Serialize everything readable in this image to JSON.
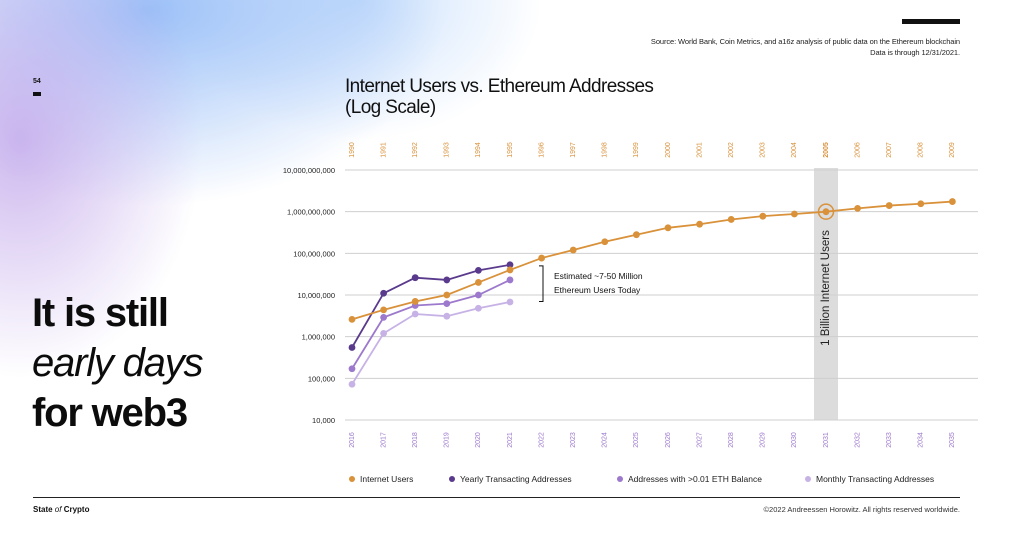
{
  "slide": {
    "page_number": "54",
    "source_line1": "Source: World Bank, Coin Metrics, and a16z analysis of public data on the Ethereum blockchain",
    "source_line2": "Data is through 12/31/2021.",
    "headline_line1": "It is still",
    "headline_line2": "early days",
    "headline_line3": "for web3",
    "brand_part1": "State ",
    "brand_part2": "of",
    "brand_part3": " Crypto",
    "copyright": "©2022 Andreessen Horowitz. All rights reserved worldwide."
  },
  "colors": {
    "internet_users": "#d9913a",
    "yearly_transacting": "#5a3a8c",
    "eth_balance": "#9c79cc",
    "monthly_transacting": "#c7b2e6",
    "top_axis_text": "#d9913a",
    "bottom_axis_text": "#9c79cc",
    "highlight_band": "#dcdcdc"
  },
  "chart_data": {
    "type": "line",
    "title_line1": "Internet Users vs. Ethereum Addresses",
    "title_line2": "(Log Scale)",
    "y_scale": "log",
    "ylim": [
      10000,
      10000000000
    ],
    "y_ticks": [
      {
        "value": 10000000000,
        "label": "10,000,000,000"
      },
      {
        "value": 1000000000,
        "label": "1,000,000,000"
      },
      {
        "value": 100000000,
        "label": "100,000,000"
      },
      {
        "value": 10000000,
        "label": "10,000,000"
      },
      {
        "value": 1000000,
        "label": "1,000,000"
      },
      {
        "value": 100000,
        "label": "100,000"
      },
      {
        "value": 10000,
        "label": "10,000"
      }
    ],
    "x_bottom": [
      "2016",
      "2017",
      "2018",
      "2019",
      "2020",
      "2021",
      "2022",
      "2023",
      "2024",
      "2025",
      "2026",
      "2027",
      "2028",
      "2029",
      "2030",
      "2031",
      "2032",
      "2033",
      "2034",
      "2035"
    ],
    "x_top": [
      "1990",
      "1991",
      "1992",
      "1993",
      "1994",
      "1995",
      "1996",
      "1997",
      "1998",
      "1999",
      "2000",
      "2001",
      "2002",
      "2003",
      "2004",
      "2005",
      "2006",
      "2007",
      "2008",
      "2009"
    ],
    "grid": true,
    "legend_position": "bottom",
    "highlight": {
      "top_year": "2005",
      "bottom_year": "2031",
      "label": "1 Billion Internet Users",
      "value": 1000000000
    },
    "annotation": {
      "line1": "Estimated ~7-50 Million",
      "line2": "Ethereum Users Today",
      "from": 7000000,
      "to": 50000000
    },
    "series": [
      {
        "name": "Internet Users",
        "color_key": "internet_users",
        "axis": "top",
        "x": [
          "1990",
          "1991",
          "1992",
          "1993",
          "1994",
          "1995",
          "1996",
          "1997",
          "1998",
          "1999",
          "2000",
          "2001",
          "2002",
          "2003",
          "2004",
          "2005",
          "2006",
          "2007",
          "2008",
          "2009"
        ],
        "values": [
          2600000,
          4400000,
          7000000,
          10000000,
          20000000,
          40000000,
          77000000,
          120000000,
          190000000,
          280000000,
          410000000,
          500000000,
          650000000,
          780000000,
          880000000,
          1000000000,
          1200000000,
          1400000000,
          1550000000,
          1750000000
        ]
      },
      {
        "name": "Yearly Transacting Addresses",
        "color_key": "yearly_transacting",
        "axis": "bottom",
        "x": [
          "2016",
          "2017",
          "2018",
          "2019",
          "2020",
          "2021"
        ],
        "values": [
          550000,
          11000000,
          26000000,
          23000000,
          39000000,
          53000000
        ]
      },
      {
        "name": "Addresses with >0.01 ETH Balance",
        "color_key": "eth_balance",
        "axis": "bottom",
        "x": [
          "2016",
          "2017",
          "2018",
          "2019",
          "2020",
          "2021"
        ],
        "values": [
          170000,
          2900000,
          5600000,
          6200000,
          10000000,
          23000000
        ]
      },
      {
        "name": "Monthly Transacting Addresses",
        "color_key": "monthly_transacting",
        "axis": "bottom",
        "x": [
          "2016",
          "2017",
          "2018",
          "2019",
          "2020",
          "2021"
        ],
        "values": [
          72000,
          1200000,
          3500000,
          3100000,
          4800000,
          6800000
        ]
      }
    ]
  }
}
